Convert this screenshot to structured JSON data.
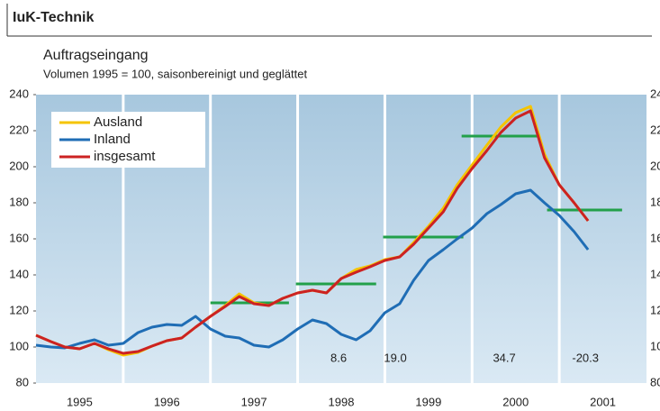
{
  "header": {
    "title": "IuK-Technik"
  },
  "chart_data": {
    "type": "line",
    "title": "Auftragseingang",
    "subtitle": "Volumen 1995 = 100, saisonbereinigt und geglättet",
    "x": [
      1995.0,
      1995.17,
      1995.33,
      1995.5,
      1995.67,
      1995.83,
      1996.0,
      1996.17,
      1996.33,
      1996.5,
      1996.67,
      1996.83,
      1997.0,
      1997.17,
      1997.33,
      1997.5,
      1997.67,
      1997.83,
      1998.0,
      1998.17,
      1998.33,
      1998.5,
      1998.67,
      1998.83,
      1999.0,
      1999.17,
      1999.33,
      1999.5,
      1999.67,
      1999.83,
      2000.0,
      2000.17,
      2000.33,
      2000.5,
      2000.67,
      2000.83,
      2001.0,
      2001.17,
      2001.33
    ],
    "series": [
      {
        "name": "Ausland",
        "color": "#f5c400",
        "values": [
          106.5,
          103,
          100,
          99,
          102,
          98.5,
          95.5,
          97,
          100.5,
          103.5,
          105,
          111,
          117,
          123,
          129.5,
          124.5,
          123,
          127,
          130,
          131.5,
          130,
          138,
          143,
          145,
          148.5,
          150,
          158,
          167,
          177,
          190,
          201,
          212,
          222,
          230,
          233.5,
          207,
          190,
          180,
          170
        ]
      },
      {
        "name": "Inland",
        "color": "#1f6db5",
        "values": [
          101,
          100,
          99.5,
          102,
          104,
          101,
          102,
          108,
          111,
          112.5,
          112,
          117,
          110,
          106,
          105,
          101,
          100,
          104,
          110,
          115,
          113,
          107,
          104,
          109,
          119,
          124,
          137,
          148,
          154,
          160,
          166,
          174,
          179,
          185,
          187,
          180,
          173,
          164,
          154
        ]
      },
      {
        "name": "insgesamt",
        "color": "#cc2222",
        "values": [
          106.5,
          103,
          100,
          99,
          102,
          99,
          96.5,
          97.5,
          100.5,
          103.5,
          105,
          111,
          117,
          122.5,
          128,
          124,
          123,
          127,
          130,
          131.5,
          130,
          138,
          141.5,
          144.5,
          148,
          150,
          157,
          166,
          175,
          188,
          199,
          209,
          219,
          227,
          231,
          205,
          190,
          180,
          170
        ]
      }
    ],
    "averages": {
      "color": "#22a04a",
      "items": [
        {
          "x": [
            1997.0,
            1997.9
          ],
          "value": 124.5
        },
        {
          "x": [
            1997.98,
            1998.9
          ],
          "value": 135
        },
        {
          "x": [
            1998.98,
            1999.9
          ],
          "value": 161
        },
        {
          "x": [
            1999.88,
            2000.78
          ],
          "value": 217
        },
        {
          "x": [
            2000.86,
            2001.72
          ],
          "value": 176
        }
      ]
    },
    "annotations": [
      {
        "text": "8.6",
        "x": 1998.47
      },
      {
        "text": "19.0",
        "x": 1999.12
      },
      {
        "text": "34.7",
        "x": 2000.37
      },
      {
        "text": "-20.3",
        "x": 2001.3
      }
    ],
    "xlim": [
      1995,
      2002
    ],
    "xticks": [
      {
        "value": 1995.5,
        "label": "1995"
      },
      {
        "value": 1996.5,
        "label": "1996"
      },
      {
        "value": 1997.5,
        "label": "1997"
      },
      {
        "value": 1998.5,
        "label": "1998"
      },
      {
        "value": 1999.5,
        "label": "1999"
      },
      {
        "value": 2000.5,
        "label": "2000"
      },
      {
        "value": 2001.5,
        "label": "2001"
      }
    ],
    "ylim": [
      80,
      240
    ],
    "yticks": [
      80,
      100,
      120,
      140,
      160,
      180,
      200,
      220,
      240
    ],
    "legend": "upper left"
  }
}
